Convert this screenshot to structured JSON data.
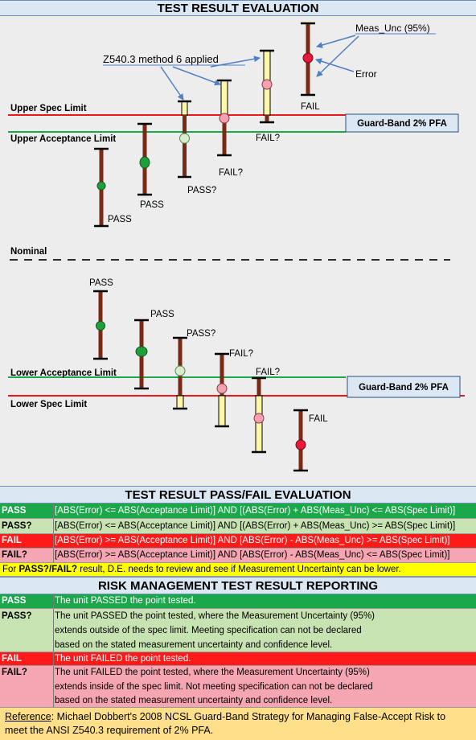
{
  "main_title": "TEST RESULT EVALUATION",
  "diagram": {
    "upper_spec_label": "Upper Spec Limit",
    "upper_accept_label": "Upper Acceptance Limit",
    "nominal_label": "Nominal",
    "lower_accept_label": "Lower Acceptance Limit",
    "lower_spec_label": "Lower Spec Limit",
    "guard_band_upper": "Guard-Band 2% PFA",
    "guard_band_lower": "Guard-Band 2% PFA",
    "method_callout": "Z540.3 method 6 applied",
    "meas_unc_callout": "Meas_Unc (95%)",
    "error_callout": "Error",
    "upper_results": [
      "PASS",
      "PASS",
      "PASS?",
      "FAIL?",
      "FAIL?",
      "FAIL"
    ],
    "lower_results": [
      "PASS",
      "PASS",
      "PASS?",
      "FAIL?",
      "FAIL?",
      "FAIL"
    ],
    "colors": {
      "spec_line": "#e8191b",
      "accept_line": "#1aa84a",
      "bar": "#7a2a14",
      "pass_dot": "#1f9e3c",
      "pass_q_dot": "#d9edcc",
      "fail_q_dot": "#f4a0b0",
      "fail_dot": "#e8193a",
      "callout_arrow": "#4f7fc4",
      "guard_box": "#dbe7f3"
    }
  },
  "evaluation": {
    "title": "TEST RESULT PASS/FAIL EVALUATION",
    "rows": [
      {
        "key": "PASS",
        "text": "[ABS(Error) <= ABS(Acceptance Limit)] AND [(ABS(Error) + ABS(Meas_Unc) <= ABS(Spec Limit)]"
      },
      {
        "key": "PASS?",
        "text": "[ABS(Error) <= ABS(Acceptance Limit)] AND [(ABS(Error) + ABS(Meas_Unc) >= ABS(Spec Limit)]"
      },
      {
        "key": "FAIL",
        "text": "[ABS(Error) >= ABS(Acceptance Limit)] AND [ABS(Error) - ABS(Meas_Unc) >= ABS(Spec Limit)]"
      },
      {
        "key": "FAIL?",
        "text": "[ABS(Error) >= ABS(Acceptance Limit)] AND [ABS(Error) - ABS(Meas_Unc) <= ABS(Spec Limit)]"
      }
    ],
    "note_prefix": "For ",
    "note_bold": "PASS?/FAIL?",
    "note_suffix": " result, D.E. needs to review and see if Measurement Uncertainty can be lower."
  },
  "risk": {
    "title": "RISK MANAGEMENT TEST RESULT REPORTING",
    "pass_key": "PASS",
    "pass_text": "The unit PASSED the point tested.",
    "passq_key": "PASS?",
    "passq_lines": [
      "The unit PASSED the point tested, where the Measurement Uncertainty (95%)",
      "extends outside of the spec limit. Meeting specification can not be declared",
      "based on the stated measurement uncertainty and confidence level."
    ],
    "fail_key": "FAIL",
    "fail_text": "The unit FAILED the point tested.",
    "failq_key": "FAIL?",
    "failq_lines": [
      "The unit FAILED the point tested, where the Measurement Uncertainty (95%)",
      "extends  inside of the spec limit. Not meeting specification can not be declared",
      "based on the stated measurement uncertainty and confidence level."
    ]
  },
  "reference": {
    "label": "Reference",
    "line1_rest": ": Michael Dobbert's 2008 NCSL Guard-Band Strategy for Managing False-Accept Risk to",
    "line2": "meet the ANSI Z540.3 requirement of 2% PFA."
  }
}
